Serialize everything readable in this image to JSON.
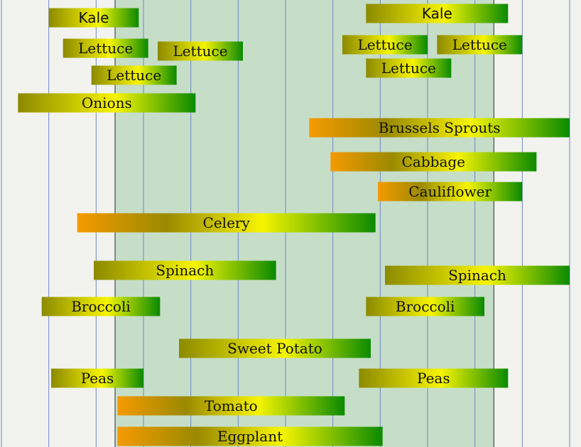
{
  "chart_data": {
    "type": "bar",
    "orientation": "horizontal-ranges",
    "title": "",
    "xlabel": "",
    "ylabel": "",
    "xlim": [
      0,
      12
    ],
    "highlight_range": [
      2.4,
      10.4
    ],
    "grid": true,
    "colors": {
      "orange": "#f59a00",
      "olive": "#8c8a00",
      "yellow": "#f6f400",
      "green": "#0a8a00",
      "grid": "#6f86c8",
      "highlight": "#c6dec7",
      "background": "#f2f3ee"
    },
    "series": [
      {
        "label": "Kale",
        "start": 1.0,
        "end": 2.9,
        "gradient": "olive-yellow-green"
      },
      {
        "label": "Kale",
        "start": 7.7,
        "end": 10.7,
        "gradient": "olive-yellow-green"
      },
      {
        "label": "Lettuce",
        "start": 1.3,
        "end": 3.1,
        "gradient": "olive-yellow-green"
      },
      {
        "label": "Lettuce",
        "start": 3.3,
        "end": 5.1,
        "gradient": "olive-yellow-green"
      },
      {
        "label": "Lettuce",
        "start": 7.2,
        "end": 9.0,
        "gradient": "olive-yellow-green"
      },
      {
        "label": "Lettuce",
        "start": 9.2,
        "end": 11.0,
        "gradient": "olive-yellow-green"
      },
      {
        "label": "Lettuce",
        "start": 1.9,
        "end": 3.7,
        "gradient": "olive-yellow-green"
      },
      {
        "label": "Lettuce",
        "start": 7.7,
        "end": 9.5,
        "gradient": "olive-yellow-green"
      },
      {
        "label": "Onions",
        "start": 0.35,
        "end": 4.1,
        "gradient": "olive-yellow-green"
      },
      {
        "label": "Brussels Sprouts",
        "start": 6.5,
        "end": 12.0,
        "gradient": "orange-olive-yellow-green"
      },
      {
        "label": "Cabbage",
        "start": 6.95,
        "end": 11.3,
        "gradient": "orange-olive-yellow-green"
      },
      {
        "label": "Cauliflower",
        "start": 7.95,
        "end": 11.0,
        "gradient": "orange-olive-yellow-green"
      },
      {
        "label": "Celery",
        "start": 1.6,
        "end": 7.9,
        "gradient": "orange-olive-yellow-green"
      },
      {
        "label": "Spinach",
        "start": 1.95,
        "end": 5.8,
        "gradient": "olive-yellow-green"
      },
      {
        "label": "Spinach",
        "start": 8.1,
        "end": 12.0,
        "gradient": "olive-yellow-green"
      },
      {
        "label": "Broccoli",
        "start": 0.85,
        "end": 3.35,
        "gradient": "olive-yellow-green"
      },
      {
        "label": "Broccoli",
        "start": 7.7,
        "end": 10.2,
        "gradient": "olive-yellow-green"
      },
      {
        "label": "Sweet Potato",
        "start": 3.75,
        "end": 7.8,
        "gradient": "olive-yellow-green"
      },
      {
        "label": "Peas",
        "start": 1.05,
        "end": 3.0,
        "gradient": "olive-yellow-green"
      },
      {
        "label": "Peas",
        "start": 7.55,
        "end": 10.7,
        "gradient": "olive-yellow-green"
      },
      {
        "label": "Tomato",
        "start": 2.45,
        "end": 7.25,
        "gradient": "orange-olive-yellow-green"
      },
      {
        "label": "Eggplant",
        "start": 2.45,
        "end": 8.05,
        "gradient": "orange-olive-yellow-green"
      }
    ]
  }
}
